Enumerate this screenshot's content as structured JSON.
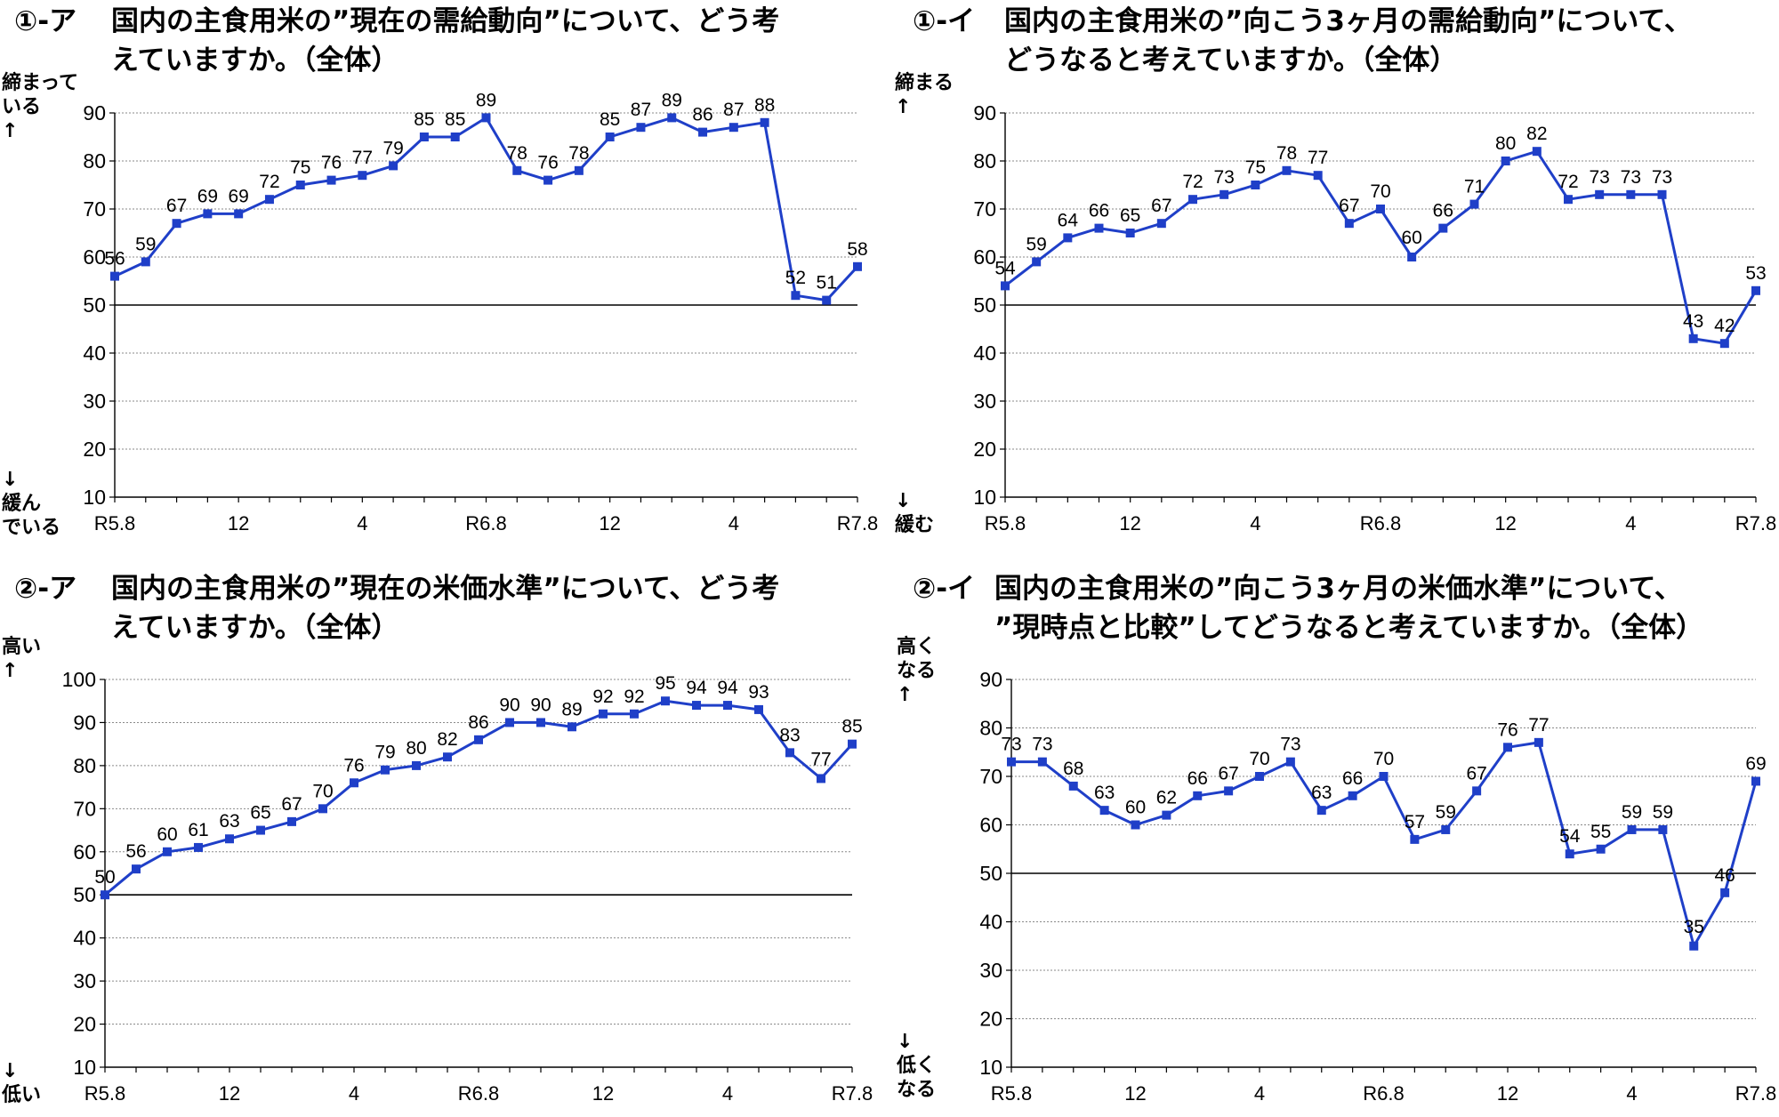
{
  "chart_data": [
    {
      "type": "line",
      "title_number": "①-ア",
      "title_lines": [
        "国内の主食用米の”現在の需給動向”について、どう考",
        "えていますか。（全体）"
      ],
      "y_top_label": "締まって\nいる\n↑",
      "y_bottom_label": "↓\n緩ん\nでいる",
      "ylim": [
        10,
        90
      ],
      "yticks": [
        10,
        20,
        30,
        40,
        50,
        60,
        70,
        80,
        90
      ],
      "reference_line": 50,
      "x_tick_labels": [
        "R5.8",
        "12",
        "4",
        "R6.8",
        "12",
        "4",
        "R7.8"
      ],
      "x_tick_index": [
        0,
        4,
        8,
        12,
        16,
        20,
        24
      ],
      "values": [
        56,
        59,
        67,
        69,
        69,
        72,
        75,
        76,
        77,
        79,
        85,
        85,
        89,
        78,
        76,
        78,
        85,
        87,
        89,
        86,
        87,
        88,
        52,
        51,
        58
      ],
      "color": "#1f3fc8"
    },
    {
      "type": "line",
      "title_number": "①-イ",
      "title_lines": [
        "国内の主食用米の”向こう3ヶ月の需給動向”について、",
        "どうなると考えていますか。（全体）"
      ],
      "y_top_label": "締まる\n↑",
      "y_bottom_label": "↓\n緩む",
      "ylim": [
        10,
        90
      ],
      "yticks": [
        10,
        20,
        30,
        40,
        50,
        60,
        70,
        80,
        90
      ],
      "reference_line": 50,
      "x_tick_labels": [
        "R5.8",
        "12",
        "4",
        "R6.8",
        "12",
        "4",
        "R7.8"
      ],
      "x_tick_index": [
        0,
        4,
        8,
        12,
        16,
        20,
        24
      ],
      "values": [
        54,
        59,
        64,
        66,
        65,
        67,
        72,
        73,
        75,
        78,
        77,
        67,
        70,
        60,
        66,
        71,
        80,
        82,
        72,
        73,
        73,
        73,
        43,
        42,
        53
      ],
      "color": "#1f3fc8"
    },
    {
      "type": "line",
      "title_number": "②-ア",
      "title_lines": [
        "国内の主食用米の”現在の米価水準”について、どう考",
        "えていますか。（全体）"
      ],
      "y_top_label": "高い\n↑",
      "y_bottom_label": "↓\n低い",
      "ylim": [
        10,
        100
      ],
      "yticks": [
        10,
        20,
        30,
        40,
        50,
        60,
        70,
        80,
        90,
        100
      ],
      "reference_line": 50,
      "x_tick_labels": [
        "R5.8",
        "12",
        "4",
        "R6.8",
        "12",
        "4",
        "R7.8"
      ],
      "x_tick_index": [
        0,
        4,
        8,
        12,
        16,
        20,
        24
      ],
      "values": [
        50,
        56,
        60,
        61,
        63,
        65,
        67,
        70,
        76,
        79,
        80,
        82,
        86,
        90,
        90,
        89,
        92,
        92,
        95,
        94,
        94,
        93,
        83,
        77,
        85
      ],
      "color": "#1f3fc8"
    },
    {
      "type": "line",
      "title_number": "②-イ",
      "title_lines": [
        "国内の主食用米の”向こう3ヶ月の米価水準”について、",
        "”現時点と比較”してどうなると考えていますか。（全体）"
      ],
      "y_top_label": "高く\nなる\n↑",
      "y_bottom_label": "↓\n低く\nなる",
      "ylim": [
        10,
        90
      ],
      "yticks": [
        10,
        20,
        30,
        40,
        50,
        60,
        70,
        80,
        90
      ],
      "reference_line": 50,
      "x_tick_labels": [
        "R5.8",
        "12",
        "4",
        "R6.8",
        "12",
        "4",
        "R7.8"
      ],
      "x_tick_index": [
        0,
        4,
        8,
        12,
        16,
        20,
        24
      ],
      "values": [
        73,
        73,
        68,
        63,
        60,
        62,
        66,
        67,
        70,
        73,
        63,
        66,
        70,
        57,
        59,
        67,
        76,
        77,
        54,
        55,
        59,
        59,
        35,
        46,
        69
      ],
      "color": "#1f3fc8"
    }
  ]
}
